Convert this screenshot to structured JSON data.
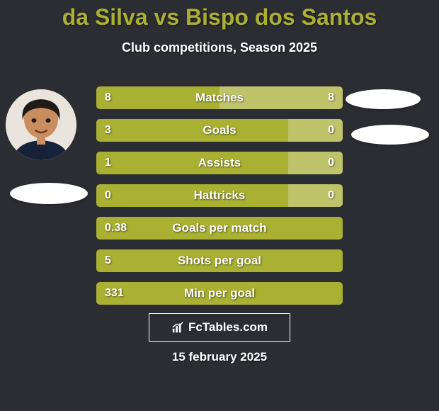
{
  "card": {
    "background_color": "#2c2d33",
    "text_color": "#ffffff"
  },
  "title": {
    "text": "da Silva vs Bispo dos Santos",
    "color": "#aab032",
    "fontsize": 32
  },
  "subtitle": {
    "text": "Club competitions, Season 2025",
    "color": "#ffffff",
    "fontsize": 18
  },
  "colors": {
    "player1": "#aab032",
    "player2": "#bfc36a",
    "inner_tint": "#b1b549"
  },
  "rows": [
    {
      "label": "Matches",
      "left": "8",
      "right": "8",
      "left_pct": 50,
      "right_pct": 50
    },
    {
      "label": "Goals",
      "left": "3",
      "right": "0",
      "left_pct": 78,
      "right_pct": 22
    },
    {
      "label": "Assists",
      "left": "1",
      "right": "0",
      "left_pct": 78,
      "right_pct": 22
    },
    {
      "label": "Hattricks",
      "left": "0",
      "right": "0",
      "left_pct": 78,
      "right_pct": 22
    },
    {
      "label": "Goals per match",
      "left": "0.38",
      "right": "",
      "left_pct": 100,
      "right_pct": 0
    },
    {
      "label": "Shots per goal",
      "left": "5",
      "right": "",
      "left_pct": 100,
      "right_pct": 0
    },
    {
      "label": "Min per goal",
      "left": "331",
      "right": "",
      "left_pct": 100,
      "right_pct": 0
    }
  ],
  "bar_style": {
    "height": 32,
    "gap": 14,
    "radius": 5,
    "label_fontsize": 17,
    "value_fontsize": 16
  },
  "brand": {
    "text": "FcTables.com",
    "border_color": "#ffffff"
  },
  "date": {
    "text": "15 february 2025"
  }
}
